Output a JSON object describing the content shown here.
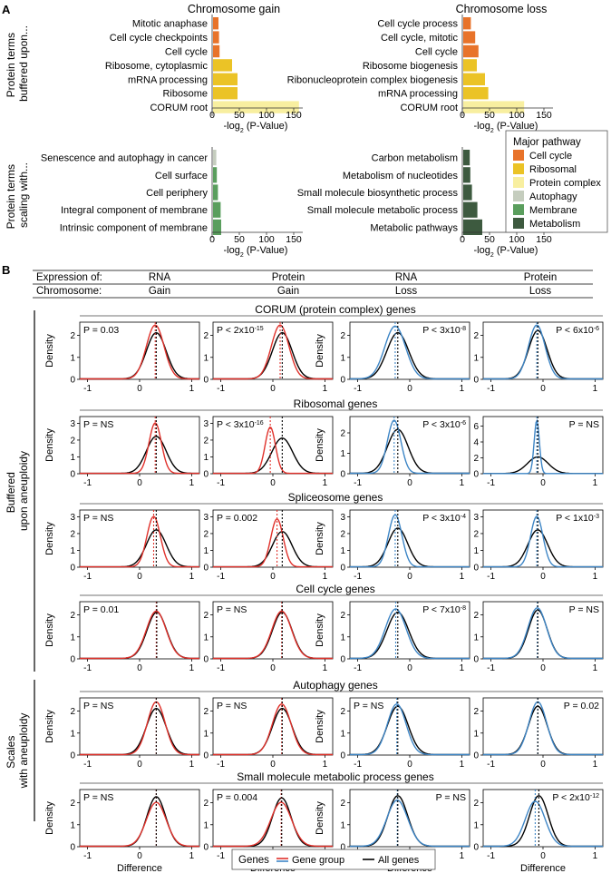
{
  "panel_a": {
    "label": "A",
    "row_labels": [
      {
        "line1": "Protein terms",
        "line2": "buffered upon..."
      },
      {
        "line1": "Protein terms",
        "line2": "scaling with..."
      }
    ],
    "x_label_prefix": "-log",
    "x_label_sub": "2",
    "x_label_suffix": " (P-Value)"
  },
  "legend_a": {
    "title": "Major pathway",
    "items": [
      {
        "label": "Cell cycle",
        "color": "#E8732A"
      },
      {
        "label": "Ribosomal",
        "color": "#EBC326"
      },
      {
        "label": "Protein complex",
        "color": "#F8EFA0"
      },
      {
        "label": "Autophagy",
        "color": "#C5CDBE"
      },
      {
        "label": "Membrane",
        "color": "#5A9E5D"
      },
      {
        "label": "Metabolism",
        "color": "#3D5A3F"
      }
    ]
  },
  "panel_b": {
    "label": "B",
    "header": {
      "expression_label": "Expression of:",
      "chromosome_label": "Chromosome:",
      "columns": [
        {
          "expr": "RNA",
          "chrom": "Gain"
        },
        {
          "expr": "Protein",
          "chrom": "Gain"
        },
        {
          "expr": "RNA",
          "chrom": "Loss"
        },
        {
          "expr": "Protein",
          "chrom": "Loss"
        }
      ]
    },
    "group_labels": [
      {
        "line1": "Buffered",
        "line2": "upon aneuploidy"
      },
      {
        "line1": "Scales",
        "line2": "with aneuploidy"
      }
    ],
    "y_label": "Density",
    "x_label": "Difference"
  },
  "legend_b": {
    "title": "Genes",
    "items": [
      {
        "label": "Gene group",
        "color": "#E0312B",
        "color2": "#3E86C6"
      },
      {
        "label": "All genes",
        "color": "#000000"
      }
    ]
  },
  "chart_data": [
    {
      "type": "bar",
      "orientation": "horizontal",
      "title": "Chromosome gain",
      "xlabel": "-log2 (P-Value)",
      "xlim": [
        0,
        160
      ],
      "xticks": [
        0,
        50,
        100,
        150
      ],
      "categories": [
        "Mitotic anaphase",
        "Cell cycle checkpoints",
        "Cell cycle",
        "Ribosome, cytoplasmic",
        "mRNA processing",
        "Ribosome",
        "CORUM root"
      ],
      "values": [
        10,
        11,
        12,
        35,
        45,
        45,
        158
      ],
      "colors": [
        "#E8732A",
        "#E8732A",
        "#E8732A",
        "#EBC326",
        "#EBC326",
        "#EBC326",
        "#F8EFA0"
      ]
    },
    {
      "type": "bar",
      "orientation": "horizontal",
      "title": "Chromosome loss",
      "xlabel": "-log2 (P-Value)",
      "xlim": [
        0,
        160
      ],
      "xticks": [
        0,
        50,
        100,
        150
      ],
      "categories": [
        "Cell cycle process",
        "Cell cycle, mitotic",
        "Cell cycle",
        "Ribosome biogenesis",
        "Ribonucleoprotein complex biogenesis",
        "mRNA processing",
        "CORUM root"
      ],
      "values": [
        14,
        22,
        28,
        25,
        40,
        46,
        112
      ],
      "colors": [
        "#E8732A",
        "#E8732A",
        "#E8732A",
        "#EBC326",
        "#EBC326",
        "#EBC326",
        "#F8EFA0"
      ]
    },
    {
      "type": "bar",
      "orientation": "horizontal",
      "title": "",
      "xlabel": "-log2 (P-Value)",
      "xlim": [
        0,
        160
      ],
      "xticks": [
        0,
        50,
        100,
        150
      ],
      "categories": [
        "Senescence and autophagy in cancer",
        "Cell surface",
        "Cell periphery",
        "Integral component of membrane",
        "Intrinsic component of membrane"
      ],
      "values": [
        6,
        7,
        9,
        14,
        15
      ],
      "colors": [
        "#C5CDBE",
        "#5A9E5D",
        "#5A9E5D",
        "#5A9E5D",
        "#5A9E5D"
      ]
    },
    {
      "type": "bar",
      "orientation": "horizontal",
      "title": "",
      "xlabel": "-log2 (P-Value)",
      "xlim": [
        0,
        160
      ],
      "xticks": [
        0,
        50,
        100,
        150
      ],
      "categories": [
        "Carbon metabolism",
        "Metabolism of nucleotides",
        "Small molecule biosynthetic process",
        "Small molecule metabolic process",
        "Metabolic pathways"
      ],
      "values": [
        12,
        13,
        16,
        26,
        35
      ],
      "colors": [
        "#3D5A3F",
        "#3D5A3F",
        "#3D5A3F",
        "#3D5A3F",
        "#3D5A3F"
      ]
    },
    {
      "type": "line",
      "subtype": "density-grid",
      "xlabel": "Difference",
      "ylabel": "Density",
      "x_ticks": [
        -1,
        0,
        1
      ],
      "rows": [
        {
          "title": "CORUM (protein complex) genes",
          "plots": [
            {
              "p": "P = 0.03",
              "p_pos": "left",
              "ymax": 2.6,
              "yticks": [
                0,
                1,
                2
              ],
              "group": {
                "mean": 0.3,
                "sd": 0.17,
                "peak": 2.45
              },
              "all": {
                "mean": 0.32,
                "sd": 0.19,
                "peak": 2.1
              },
              "vline_group": 0.3,
              "vline_all": 0.32
            },
            {
              "p": "P < 2x10-15",
              "p_pos": "left",
              "ymax": 2.6,
              "yticks": [
                0,
                1,
                2
              ],
              "group": {
                "mean": 0.14,
                "sd": 0.17,
                "peak": 2.45
              },
              "all": {
                "mean": 0.18,
                "sd": 0.19,
                "peak": 2.1
              },
              "vline_group": 0.14,
              "vline_all": 0.18
            },
            {
              "p": "P < 3x10-8",
              "p_pos": "right",
              "ymax": 2.6,
              "yticks": [
                0,
                1,
                2
              ],
              "group": {
                "mean": -0.28,
                "sd": 0.2,
                "peak": 2.4
              },
              "all": {
                "mean": -0.23,
                "sd": 0.21,
                "peak": 2.1
              },
              "vline_group": -0.28,
              "vline_all": -0.23
            },
            {
              "p": "P < 6x10-6",
              "p_pos": "right",
              "ymax": 2.6,
              "yticks": [
                0,
                1,
                2
              ],
              "group": {
                "mean": -0.12,
                "sd": 0.16,
                "peak": 2.45
              },
              "all": {
                "mean": -0.1,
                "sd": 0.18,
                "peak": 2.2
              },
              "vline_group": -0.12,
              "vline_all": -0.1
            }
          ]
        },
        {
          "title": "Ribosomal genes",
          "plots": [
            {
              "p": "P = NS",
              "p_pos": "left",
              "ymax": 3.4,
              "yticks": [
                0,
                1,
                2,
                3
              ],
              "group": {
                "mean": 0.3,
                "sd": 0.12,
                "peak": 3.0
              },
              "all": {
                "mean": 0.32,
                "sd": 0.19,
                "peak": 2.2
              },
              "vline_group": 0.3,
              "vline_all": 0.32
            },
            {
              "p": "P < 3x10-16",
              "p_pos": "left",
              "ymax": 3.4,
              "yticks": [
                0,
                1,
                2,
                3
              ],
              "group": {
                "mean": -0.05,
                "sd": 0.1,
                "peak": 2.75
              },
              "all": {
                "mean": 0.18,
                "sd": 0.2,
                "peak": 2.1
              },
              "vline_group": -0.05,
              "vline_all": 0.18
            },
            {
              "p": "P < 3x10-6",
              "p_pos": "right",
              "ymax": 2.8,
              "yticks": [
                0,
                1,
                2
              ],
              "group": {
                "mean": -0.3,
                "sd": 0.13,
                "peak": 2.6
              },
              "all": {
                "mean": -0.23,
                "sd": 0.2,
                "peak": 2.15
              },
              "vline_group": -0.3,
              "vline_all": -0.23
            },
            {
              "p": "P = NS",
              "p_pos": "right",
              "ymax": 7.2,
              "yticks": [
                0,
                2,
                4,
                6
              ],
              "group": {
                "mean": -0.12,
                "sd": 0.05,
                "peak": 6.7
              },
              "all": {
                "mean": -0.1,
                "sd": 0.2,
                "peak": 2.1
              },
              "vline_group": -0.12,
              "vline_all": -0.1
            }
          ]
        },
        {
          "title": "Spliceosome genes",
          "plots": [
            {
              "p": "P = NS",
              "p_pos": "left",
              "ymax": 3.4,
              "yticks": [
                0,
                1,
                2,
                3
              ],
              "group": {
                "mean": 0.27,
                "sd": 0.13,
                "peak": 3.0
              },
              "all": {
                "mean": 0.32,
                "sd": 0.19,
                "peak": 2.2
              },
              "vline_group": 0.27,
              "vline_all": 0.32
            },
            {
              "p": "P = 0.002",
              "p_pos": "left",
              "ymax": 3.4,
              "yticks": [
                0,
                1,
                2,
                3
              ],
              "group": {
                "mean": 0.08,
                "sd": 0.12,
                "peak": 2.85
              },
              "all": {
                "mean": 0.18,
                "sd": 0.19,
                "peak": 2.1
              },
              "vline_group": 0.08,
              "vline_all": 0.18
            },
            {
              "p": "P < 3x10-4",
              "p_pos": "right",
              "ymax": 3.4,
              "yticks": [
                0,
                1,
                2,
                3
              ],
              "group": {
                "mean": -0.28,
                "sd": 0.13,
                "peak": 3.1
              },
              "all": {
                "mean": -0.23,
                "sd": 0.19,
                "peak": 2.3
              },
              "vline_group": -0.28,
              "vline_all": -0.23
            },
            {
              "p": "P < 1x10-3",
              "p_pos": "right",
              "ymax": 3.4,
              "yticks": [
                0,
                1,
                2,
                3
              ],
              "group": {
                "mean": -0.12,
                "sd": 0.12,
                "peak": 3.0
              },
              "all": {
                "mean": -0.1,
                "sd": 0.19,
                "peak": 2.2
              },
              "vline_group": -0.12,
              "vline_all": -0.1
            }
          ]
        },
        {
          "title": "Cell cycle genes",
          "plots": [
            {
              "p": "P = 0.01",
              "p_pos": "left",
              "ymax": 2.6,
              "yticks": [
                0,
                1,
                2
              ],
              "group": {
                "mean": 0.32,
                "sd": 0.19,
                "peak": 2.15
              },
              "all": {
                "mean": 0.33,
                "sd": 0.19,
                "peak": 2.1
              },
              "vline_group": 0.32,
              "vline_all": 0.33
            },
            {
              "p": "P = NS",
              "p_pos": "left",
              "ymax": 2.6,
              "yticks": [
                0,
                1,
                2
              ],
              "group": {
                "mean": 0.17,
                "sd": 0.19,
                "peak": 2.15
              },
              "all": {
                "mean": 0.18,
                "sd": 0.19,
                "peak": 2.1
              },
              "vline_group": 0.17,
              "vline_all": 0.18
            },
            {
              "p": "P < 7x10-8",
              "p_pos": "right",
              "ymax": 2.6,
              "yticks": [
                0,
                1,
                2
              ],
              "group": {
                "mean": -0.27,
                "sd": 0.2,
                "peak": 2.25
              },
              "all": {
                "mean": -0.23,
                "sd": 0.21,
                "peak": 2.1
              },
              "vline_group": -0.27,
              "vline_all": -0.23
            },
            {
              "p": "P = NS",
              "p_pos": "right",
              "ymax": 2.6,
              "yticks": [
                0,
                1,
                2
              ],
              "group": {
                "mean": -0.11,
                "sd": 0.18,
                "peak": 2.3
              },
              "all": {
                "mean": -0.1,
                "sd": 0.18,
                "peak": 2.2
              },
              "vline_group": -0.11,
              "vline_all": -0.1
            }
          ]
        },
        {
          "title": "Autophagy genes",
          "plots": [
            {
              "p": "P = NS",
              "p_pos": "left",
              "ymax": 2.6,
              "yticks": [
                0,
                1,
                2
              ],
              "group": {
                "mean": 0.32,
                "sd": 0.17,
                "peak": 2.4
              },
              "all": {
                "mean": 0.32,
                "sd": 0.19,
                "peak": 2.1
              },
              "vline_group": 0.32,
              "vline_all": 0.32
            },
            {
              "p": "P = NS",
              "p_pos": "left",
              "ymax": 2.6,
              "yticks": [
                0,
                1,
                2
              ],
              "group": {
                "mean": 0.17,
                "sd": 0.18,
                "peak": 2.3
              },
              "all": {
                "mean": 0.18,
                "sd": 0.19,
                "peak": 2.1
              },
              "vline_group": 0.17,
              "vline_all": 0.18
            },
            {
              "p": "P = NS",
              "p_pos": "left",
              "ymax": 2.6,
              "yticks": [
                0,
                1,
                2
              ],
              "group": {
                "mean": -0.25,
                "sd": 0.18,
                "peak": 2.3
              },
              "all": {
                "mean": -0.23,
                "sd": 0.2,
                "peak": 2.2
              },
              "vline_group": -0.25,
              "vline_all": -0.23
            },
            {
              "p": "P = 0.02",
              "p_pos": "right",
              "ymax": 2.6,
              "yticks": [
                0,
                1,
                2
              ],
              "group": {
                "mean": -0.1,
                "sd": 0.17,
                "peak": 2.4
              },
              "all": {
                "mean": -0.1,
                "sd": 0.18,
                "peak": 2.2
              },
              "vline_group": -0.1,
              "vline_all": -0.1
            }
          ]
        },
        {
          "title": "Small molecule metabolic process genes",
          "plots": [
            {
              "p": "P = NS",
              "p_pos": "left",
              "ymax": 2.6,
              "yticks": [
                0,
                1,
                2
              ],
              "group": {
                "mean": 0.32,
                "sd": 0.19,
                "peak": 2.0
              },
              "all": {
                "mean": 0.32,
                "sd": 0.18,
                "peak": 2.25
              },
              "vline_group": 0.32,
              "vline_all": 0.32
            },
            {
              "p": "P = 0.004",
              "p_pos": "left",
              "ymax": 2.6,
              "yticks": [
                0,
                1,
                2
              ],
              "group": {
                "mean": 0.16,
                "sd": 0.2,
                "peak": 2.0
              },
              "all": {
                "mean": 0.17,
                "sd": 0.18,
                "peak": 2.2
              },
              "vline_group": 0.16,
              "vline_all": 0.17
            },
            {
              "p": "P = NS",
              "p_pos": "right",
              "ymax": 2.6,
              "yticks": [
                0,
                1,
                2
              ],
              "group": {
                "mean": -0.24,
                "sd": 0.2,
                "peak": 2.1
              },
              "all": {
                "mean": -0.23,
                "sd": 0.19,
                "peak": 2.3
              },
              "vline_group": -0.24,
              "vline_all": -0.23
            },
            {
              "p": "P < 2x10-12",
              "p_pos": "right",
              "ymax": 2.6,
              "yticks": [
                0,
                1,
                2
              ],
              "group": {
                "mean": -0.15,
                "sd": 0.19,
                "peak": 2.05
              },
              "all": {
                "mean": -0.08,
                "sd": 0.18,
                "peak": 2.3
              },
              "vline_group": -0.15,
              "vline_all": -0.08
            }
          ]
        }
      ]
    }
  ]
}
